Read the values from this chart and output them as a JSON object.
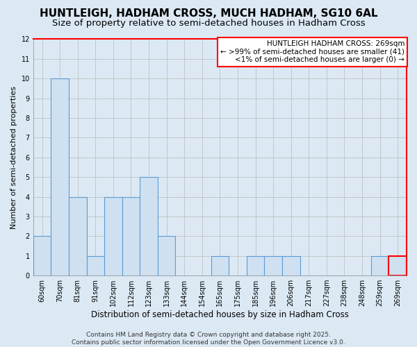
{
  "title": "HUNTLEIGH, HADHAM CROSS, MUCH HADHAM, SG10 6AL",
  "subtitle": "Size of property relative to semi-detached houses in Hadham Cross",
  "xlabel": "Distribution of semi-detached houses by size in Hadham Cross",
  "ylabel": "Number of semi-detached properties",
  "categories": [
    "60sqm",
    "70sqm",
    "81sqm",
    "91sqm",
    "102sqm",
    "112sqm",
    "123sqm",
    "133sqm",
    "144sqm",
    "154sqm",
    "165sqm",
    "175sqm",
    "185sqm",
    "196sqm",
    "206sqm",
    "217sqm",
    "227sqm",
    "238sqm",
    "248sqm",
    "259sqm",
    "269sqm"
  ],
  "values": [
    2,
    10,
    4,
    1,
    4,
    4,
    5,
    2,
    0,
    0,
    1,
    0,
    1,
    1,
    1,
    0,
    0,
    0,
    0,
    1,
    1
  ],
  "bar_color": "#cfe0f0",
  "bar_edge_color": "#5b9bd5",
  "highlight_index": 20,
  "highlight_bar_edge_color": "#ff0000",
  "ylim": [
    0,
    12
  ],
  "yticks": [
    0,
    1,
    2,
    3,
    4,
    5,
    6,
    7,
    8,
    9,
    10,
    11,
    12
  ],
  "grid_color": "#c0c0c0",
  "background_color": "#dce9f5",
  "plot_bg_color": "#dce9f5",
  "legend_title": "HUNTLEIGH HADHAM CROSS: 269sqm",
  "legend_line1": "← >99% of semi-detached houses are smaller (41)",
  "legend_line2": "<1% of semi-detached houses are larger (0) →",
  "legend_box_edge_color": "#ff0000",
  "footer_line1": "Contains HM Land Registry data © Crown copyright and database right 2025.",
  "footer_line2": "Contains public sector information licensed under the Open Government Licence v3.0.",
  "title_fontsize": 11,
  "subtitle_fontsize": 9.5,
  "xlabel_fontsize": 8.5,
  "ylabel_fontsize": 8,
  "tick_fontsize": 7,
  "legend_fontsize": 7.5,
  "footer_fontsize": 6.5
}
